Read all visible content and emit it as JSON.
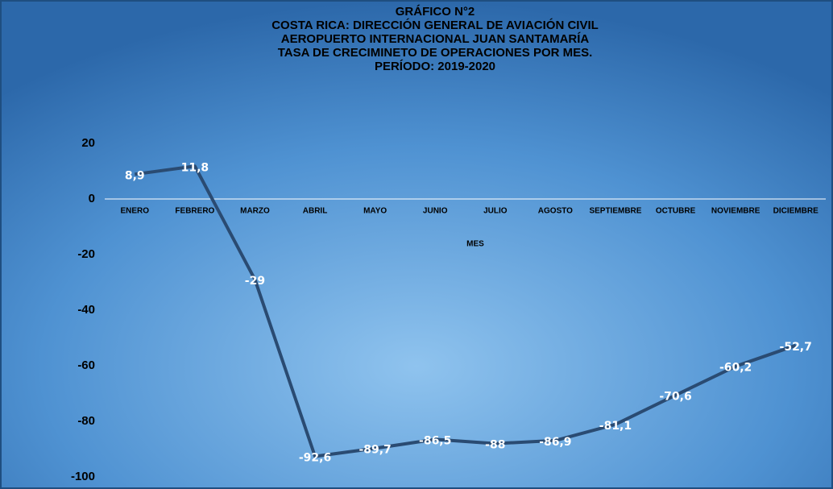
{
  "chart_data": {
    "type": "line",
    "title_lines": [
      "GRÁFICO N°2",
      "COSTA RICA: DIRECCIÓN GENERAL DE AVIACIÓN CIVIL",
      "AEROPUERTO INTERNACIONAL JUAN SANTAMARÍA",
      "TASA DE CRECIMINETO DE OPERACIONES POR MES.",
      "PERÍODO: 2019-2020"
    ],
    "x_label": "MES",
    "categories": [
      "ENERO",
      "FEBRERO",
      "MARZO",
      "ABRIL",
      "MAYO",
      "JUNIO",
      "JULIO",
      "AGOSTO",
      "SEPTIEMBRE",
      "OCTUBRE",
      "NOVIEMBRE",
      "DICIEMBRE"
    ],
    "values": [
      8.9,
      11.8,
      -29,
      -92.6,
      -89.7,
      -86.5,
      -88,
      -86.9,
      -81.1,
      -70.6,
      -60.2,
      -52.7
    ],
    "value_labels": [
      "8,9",
      "11,8",
      "-29",
      "-92,6",
      "-89,7",
      "-86,5",
      "-88",
      "-86,9",
      "-81,1",
      "-70,6",
      "-60,2",
      "-52,7"
    ],
    "color": "#2a4b72",
    "ylim": [
      -100,
      20
    ],
    "yticks": [
      20,
      0,
      -20,
      -40,
      -60,
      -80,
      -100
    ]
  }
}
